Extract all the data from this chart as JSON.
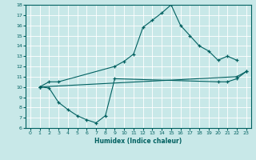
{
  "xlabel": "Humidex (Indice chaleur)",
  "bg_color": "#c8e8e8",
  "grid_color": "#ffffff",
  "line_color": "#006060",
  "xlim": [
    -0.5,
    23.5
  ],
  "ylim": [
    6,
    18
  ],
  "xticks": [
    0,
    1,
    2,
    3,
    4,
    5,
    6,
    7,
    8,
    9,
    10,
    11,
    12,
    13,
    14,
    15,
    16,
    17,
    18,
    19,
    20,
    21,
    22,
    23
  ],
  "yticks": [
    6,
    7,
    8,
    9,
    10,
    11,
    12,
    13,
    14,
    15,
    16,
    17,
    18
  ],
  "line1_x": [
    1,
    2,
    3,
    9,
    10,
    11,
    12,
    13,
    14,
    15,
    16,
    17,
    18,
    19,
    20,
    21,
    22
  ],
  "line1_y": [
    10.0,
    10.5,
    10.5,
    12.0,
    12.5,
    13.2,
    15.8,
    16.5,
    17.2,
    18.0,
    16.0,
    15.0,
    14.0,
    13.5,
    12.6,
    13.0,
    12.6
  ],
  "line2_x": [
    1,
    2,
    3,
    4,
    5,
    6,
    7,
    8,
    9,
    20,
    21,
    22,
    23
  ],
  "line2_y": [
    10.0,
    9.9,
    8.5,
    7.8,
    7.2,
    6.8,
    6.5,
    7.2,
    10.8,
    10.5,
    10.5,
    10.8,
    11.5
  ],
  "line3_x": [
    1,
    22,
    23
  ],
  "line3_y": [
    10.0,
    11.0,
    11.5
  ]
}
